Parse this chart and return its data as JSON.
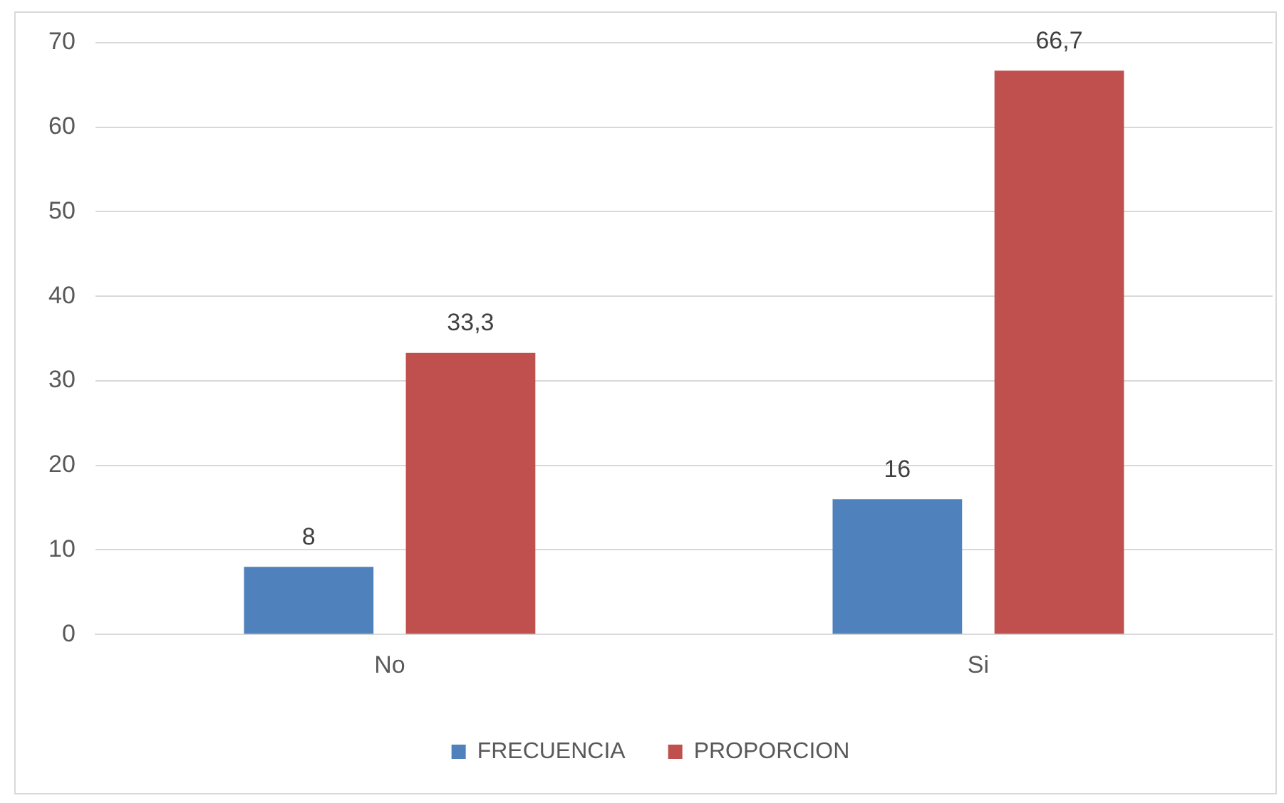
{
  "chart_data": {
    "type": "bar",
    "categories": [
      "No",
      "Si"
    ],
    "series": [
      {
        "name": "FRECUENCIA",
        "color": "#4f81bd",
        "values": [
          8,
          16
        ],
        "value_labels": [
          "8",
          "16"
        ]
      },
      {
        "name": "PROPORCION",
        "color": "#c0504d",
        "values": [
          33.3,
          66.7
        ],
        "value_labels": [
          "33,3",
          "66,7"
        ]
      }
    ],
    "ylim": [
      0,
      70
    ],
    "yticks": [
      0,
      10,
      20,
      30,
      40,
      50,
      60,
      70
    ],
    "grid": "y",
    "legend": "bottom"
  }
}
